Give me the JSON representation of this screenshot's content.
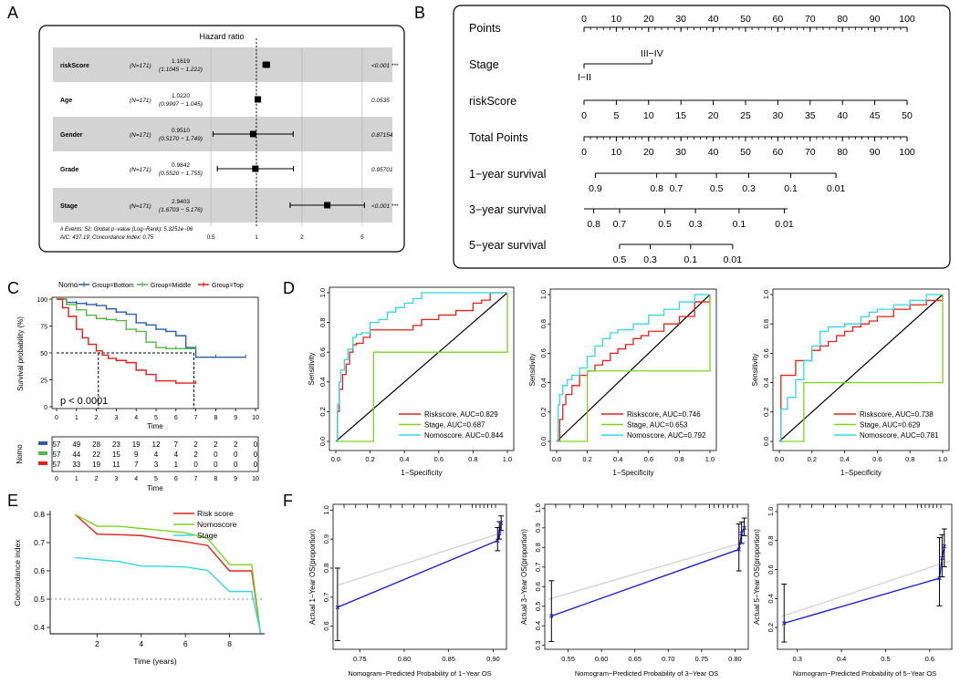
{
  "panel_letters": [
    "A",
    "B",
    "C",
    "D",
    "E",
    "F"
  ],
  "chart_data": [
    {
      "panel": "A",
      "type": "forest",
      "title": "Hazard ratio",
      "rows": [
        {
          "label": "riskScore",
          "n": "(N=171)",
          "hr": 1.1619,
          "hr_text": "1.1619",
          "ci_text": "(1.1045 − 1.222)",
          "lo": 1.1045,
          "hi": 1.222,
          "p": "<0.001 ***"
        },
        {
          "label": "Age",
          "n": "(N=171)",
          "hr": 1.022,
          "hr_text": "1.0220",
          "ci_text": "(0.9997 − 1.045)",
          "lo": 0.9997,
          "hi": 1.045,
          "p": "0.0535"
        },
        {
          "label": "Gender",
          "n": "(N=171)",
          "hr": 0.951,
          "hr_text": "0.9510",
          "ci_text": "(0.5170 − 1.749)",
          "lo": 0.517,
          "hi": 1.749,
          "p": "0.87154"
        },
        {
          "label": "Grade",
          "n": "(N=171)",
          "hr": 0.9842,
          "hr_text": "0.9842",
          "ci_text": "(0.5520 − 1.755)",
          "lo": 0.552,
          "hi": 1.755,
          "p": "0.95701"
        },
        {
          "label": "Stage",
          "n": "(N=171)",
          "hr": 2.9403,
          "hr_text": "2.9403",
          "ci_text": "(1.6703 − 5.176)",
          "lo": 1.6703,
          "hi": 5.176,
          "p": "<0.001 ***"
        }
      ],
      "xticks": [
        0.5,
        1,
        2,
        5
      ],
      "footnote": [
        "# Events: 52; Global p−value (Log−Rank): 5.3251e−06",
        "AIC: 437.19; Concordance Index: 0.75"
      ]
    },
    {
      "panel": "B",
      "type": "nomogram",
      "rows": [
        {
          "label": "Points",
          "min": 0,
          "max": 100,
          "ticks": [
            "0",
            "10",
            "20",
            "30",
            "40",
            "50",
            "60",
            "70",
            "80",
            "90",
            "100"
          ]
        },
        {
          "label": "Stage",
          "categories": [
            "I−II",
            "III−IV"
          ]
        },
        {
          "label": "riskScore",
          "min": 0,
          "max": 50,
          "ticks": [
            "0",
            "5",
            "10",
            "15",
            "20",
            "25",
            "30",
            "35",
            "40",
            "45",
            "50"
          ]
        },
        {
          "label": "Total Points",
          "min": 0,
          "max": 100,
          "ticks": [
            "0",
            "10",
            "20",
            "30",
            "40",
            "50",
            "60",
            "70",
            "80",
            "90",
            "100"
          ]
        },
        {
          "label": "1−year survival",
          "ticks": [
            "0.9",
            "0.8",
            "0.7",
            "0.5",
            "0.3",
            "0.1",
            "0.01"
          ]
        },
        {
          "label": "3−year survival",
          "ticks": [
            "0.8",
            "0.7",
            "0.5",
            "0.3",
            "0.1",
            "0.01"
          ]
        },
        {
          "label": "5−year survival",
          "ticks": [
            "0.5",
            "0.3",
            "0.1",
            "0.01"
          ]
        }
      ]
    },
    {
      "panel": "C",
      "type": "line",
      "subtype": "kaplan-meier",
      "legend_title": "Nomo",
      "legend": [
        "Group=Bottom",
        "Group=Middle",
        "Group=Top"
      ],
      "xlabel": "Time",
      "ylabel": "Survival probability (%)",
      "xticks": [
        0,
        1,
        2,
        3,
        4,
        5,
        6,
        7,
        8,
        9,
        10
      ],
      "yticks": [
        0,
        25,
        50,
        75,
        100
      ],
      "pvalue": "p < 0.0001",
      "median_times": [
        2.1,
        6.9
      ],
      "series": [
        {
          "name": "Group=Bottom",
          "color": "#2b5faa",
          "x": [
            0,
            0.5,
            1,
            1.5,
            2,
            2.5,
            3,
            3.5,
            4,
            4.5,
            5,
            5.5,
            6,
            6.5,
            7,
            8,
            9.5
          ],
          "y": [
            100,
            97,
            96,
            95,
            94,
            91,
            88,
            86,
            78,
            76,
            72,
            70,
            66,
            55,
            46,
            46,
            46
          ]
        },
        {
          "name": "Group=Middle",
          "color": "#52b848",
          "x": [
            0,
            0.5,
            1,
            1.5,
            2,
            2.5,
            3,
            3.5,
            4,
            4.5,
            5,
            5.5,
            6,
            7
          ],
          "y": [
            100,
            95,
            90,
            85,
            82,
            81,
            80,
            72,
            70,
            60,
            55,
            54,
            54,
            54
          ]
        },
        {
          "name": "Group=Top",
          "color": "#e2231a",
          "x": [
            0,
            0.3,
            0.6,
            1,
            1.3,
            1.6,
            2,
            2.3,
            2.6,
            3,
            3.5,
            4,
            4.5,
            5,
            6,
            7
          ],
          "y": [
            100,
            92,
            84,
            72,
            64,
            58,
            52,
            48,
            45,
            43,
            41,
            34,
            30,
            24,
            22,
            22
          ]
        }
      ],
      "risk_table": {
        "title": "Nomo",
        "xlabel": "Time",
        "rows": [
          {
            "color": "#2b5faa",
            "values": [
              "57",
              "49",
              "28",
              "23",
              "19",
              "12",
              "7",
              "2",
              "2",
              "2",
              "0"
            ]
          },
          {
            "color": "#52b848",
            "values": [
              "57",
              "44",
              "22",
              "15",
              "9",
              "4",
              "4",
              "2",
              "0",
              "0",
              "0"
            ]
          },
          {
            "color": "#e2231a",
            "values": [
              "57",
              "33",
              "19",
              "11",
              "7",
              "3",
              "1",
              "0",
              "0",
              "0",
              "0"
            ]
          }
        ]
      }
    },
    {
      "panel": "D",
      "type": "line",
      "subtype": "roc",
      "plots": [
        {
          "xlabel": "1−Specificity",
          "ylabel": "Sensitivity",
          "legend": [
            "Riskscore, AUC=0.829",
            "Stage, AUC=0.687",
            "Nomoscore, AUC=0.844"
          ],
          "series": [
            {
              "name": "Riskscore",
              "color": "#e2231a",
              "x": [
                0,
                0.01,
                0.02,
                0.04,
                0.06,
                0.08,
                0.1,
                0.12,
                0.16,
                0.2,
                0.3,
                0.4,
                0.45,
                0.5,
                0.6,
                0.7,
                0.8,
                0.85,
                0.9,
                1
              ],
              "y": [
                0,
                0.2,
                0.35,
                0.45,
                0.52,
                0.6,
                0.65,
                0.66,
                0.7,
                0.75,
                0.75,
                0.75,
                0.78,
                0.82,
                0.85,
                0.88,
                0.93,
                0.95,
                1,
                1
              ]
            },
            {
              "name": "Stage",
              "color": "#7ed321",
              "x": [
                0,
                0.22,
                1
              ],
              "y": [
                0,
                0.6,
                1
              ]
            },
            {
              "name": "Nomoscore",
              "color": "#33d6e6",
              "x": [
                0,
                0.01,
                0.02,
                0.03,
                0.05,
                0.07,
                0.1,
                0.12,
                0.15,
                0.2,
                0.25,
                0.3,
                0.35,
                0.4,
                0.45,
                0.5,
                0.7,
                0.9,
                1
              ],
              "y": [
                0,
                0.25,
                0.4,
                0.48,
                0.55,
                0.62,
                0.7,
                0.72,
                0.73,
                0.8,
                0.82,
                0.87,
                0.9,
                0.93,
                0.96,
                1,
                1,
                1,
                1
              ]
            }
          ]
        },
        {
          "xlabel": "1−Specificity",
          "ylabel": "Sensitivity",
          "legend": [
            "Riskscore, AUC=0.746",
            "Stage, AUC=0.653",
            "Nomoscore, AUC=0.792"
          ],
          "series": [
            {
              "name": "Riskscore",
              "color": "#e2231a",
              "x": [
                0,
                0.02,
                0.04,
                0.06,
                0.1,
                0.15,
                0.2,
                0.25,
                0.3,
                0.35,
                0.4,
                0.45,
                0.5,
                0.55,
                0.6,
                0.7,
                0.8,
                0.9,
                1
              ],
              "y": [
                0,
                0.15,
                0.25,
                0.32,
                0.38,
                0.45,
                0.48,
                0.52,
                0.55,
                0.6,
                0.63,
                0.66,
                0.7,
                0.72,
                0.75,
                0.8,
                0.85,
                0.95,
                1
              ]
            },
            {
              "name": "Stage",
              "color": "#7ed321",
              "x": [
                0,
                0.2,
                1
              ],
              "y": [
                0,
                0.48,
                1
              ]
            },
            {
              "name": "Nomoscore",
              "color": "#33d6e6",
              "x": [
                0,
                0.01,
                0.02,
                0.04,
                0.07,
                0.1,
                0.15,
                0.2,
                0.25,
                0.3,
                0.35,
                0.4,
                0.5,
                0.6,
                0.7,
                0.8,
                0.9,
                1
              ],
              "y": [
                0,
                0.25,
                0.32,
                0.38,
                0.42,
                0.45,
                0.5,
                0.58,
                0.65,
                0.7,
                0.74,
                0.76,
                0.8,
                0.86,
                0.9,
                0.95,
                1,
                1
              ]
            }
          ]
        },
        {
          "xlabel": "1−Specificity",
          "ylabel": "Sensitivity",
          "legend": [
            "Riskscore, AUC=0.738",
            "Stage, AUC=0.629",
            "Nomoscore, AUC=0.781"
          ],
          "series": [
            {
              "name": "Riskscore",
              "color": "#e2231a",
              "x": [
                0,
                0.01,
                0.05,
                0.1,
                0.15,
                0.2,
                0.25,
                0.3,
                0.35,
                0.4,
                0.45,
                0.5,
                0.55,
                0.6,
                0.7,
                0.8,
                0.9,
                1
              ],
              "y": [
                0,
                0.45,
                0.45,
                0.55,
                0.55,
                0.62,
                0.65,
                0.68,
                0.72,
                0.75,
                0.78,
                0.8,
                0.82,
                0.85,
                0.9,
                0.93,
                0.96,
                1
              ]
            },
            {
              "name": "Stage",
              "color": "#7ed321",
              "x": [
                0,
                0.15,
                1
              ],
              "y": [
                0,
                0.4,
                1
              ]
            },
            {
              "name": "Nomoscore",
              "color": "#33d6e6",
              "x": [
                0,
                0.01,
                0.05,
                0.1,
                0.15,
                0.2,
                0.25,
                0.3,
                0.4,
                0.5,
                0.55,
                0.6,
                0.7,
                0.8,
                0.9,
                1
              ],
              "y": [
                0,
                0.22,
                0.3,
                0.42,
                0.55,
                0.65,
                0.75,
                0.78,
                0.8,
                0.85,
                0.88,
                0.9,
                0.93,
                0.96,
                1,
                1
              ]
            }
          ]
        }
      ]
    },
    {
      "panel": "E",
      "type": "line",
      "xlabel": "Time (years)",
      "ylabel": "Concordance index",
      "xticks": [
        2,
        4,
        6,
        8
      ],
      "yticks": [
        0.4,
        0.5,
        0.6,
        0.7,
        0.8
      ],
      "xlim": [
        0,
        10
      ],
      "ylim": [
        0.38,
        0.82
      ],
      "legend": [
        "Risk score",
        "Nomoscore",
        "Stage"
      ],
      "reference": 0.5,
      "series": [
        {
          "name": "Risk score",
          "color": "#e2231a",
          "x": [
            1,
            2,
            3,
            4,
            5,
            6,
            7,
            8,
            9,
            9.4
          ],
          "y": [
            0.8,
            0.73,
            0.728,
            0.725,
            0.713,
            0.703,
            0.69,
            0.6,
            0.6,
            0.38
          ]
        },
        {
          "name": "Nomoscore",
          "color": "#7ed321",
          "x": [
            1,
            2,
            3,
            4,
            5,
            6,
            7,
            8,
            9,
            9.4
          ],
          "y": [
            0.8,
            0.758,
            0.758,
            0.75,
            0.743,
            0.735,
            0.715,
            0.622,
            0.622,
            0.38
          ]
        },
        {
          "name": "Stage",
          "color": "#33d6e6",
          "x": [
            1,
            2,
            3,
            4,
            5,
            6,
            7,
            8,
            9,
            9.4
          ],
          "y": [
            0.647,
            0.64,
            0.633,
            0.617,
            0.616,
            0.614,
            0.602,
            0.527,
            0.527,
            0.38
          ]
        }
      ]
    },
    {
      "panel": "F",
      "type": "line",
      "subtype": "calibration",
      "plots": [
        {
          "xlabel": "Nomogram−Predicted Probability of 1−Year OS",
          "ylabel": "Actual 1−Year OS(proportion)",
          "xticks": [
            0.75,
            0.8,
            0.85,
            0.9
          ],
          "yticks": [
            0.6,
            0.7,
            0.8,
            0.9,
            1.0
          ],
          "xlim": [
            0.72,
            0.915
          ],
          "ylim": [
            0.52,
            1.02
          ],
          "points": [
            {
              "x": 0.725,
              "y": 0.665,
              "lo": 0.55,
              "hi": 0.8
            },
            {
              "x": 0.905,
              "y": 0.895,
              "lo": 0.86,
              "hi": 0.94
            },
            {
              "x": 0.907,
              "y": 0.92,
              "lo": 0.9,
              "hi": 0.96
            },
            {
              "x": 0.909,
              "y": 0.955,
              "lo": 0.93,
              "hi": 0.98
            }
          ]
        },
        {
          "xlabel": "Nomogram−Predicted Probability of 3−Year OS",
          "ylabel": "Actual 3−Year OS(proportion)",
          "xticks": [
            0.55,
            0.6,
            0.65,
            0.7,
            0.75,
            0.8
          ],
          "yticks": [
            0.3,
            0.4,
            0.5,
            0.6,
            0.7,
            0.8,
            0.9,
            1.0
          ],
          "xlim": [
            0.515,
            0.82
          ],
          "ylim": [
            0.28,
            1.02
          ],
          "points": [
            {
              "x": 0.525,
              "y": 0.45,
              "lo": 0.32,
              "hi": 0.63
            },
            {
              "x": 0.806,
              "y": 0.79,
              "lo": 0.68,
              "hi": 0.92
            },
            {
              "x": 0.81,
              "y": 0.87,
              "lo": 0.82,
              "hi": 0.93
            },
            {
              "x": 0.814,
              "y": 0.9,
              "lo": 0.86,
              "hi": 0.95
            }
          ]
        },
        {
          "xlabel": "Nomogram−Predicted Probability of 5−Year OS",
          "ylabel": "Actual 5−Year OS(proportion)",
          "xticks": [
            0.3,
            0.4,
            0.5,
            0.6
          ],
          "yticks": [
            0.2,
            0.4,
            0.6,
            0.8,
            1.0
          ],
          "xlim": [
            0.255,
            0.65
          ],
          "ylim": [
            0.05,
            1.05
          ],
          "points": [
            {
              "x": 0.27,
              "y": 0.23,
              "lo": 0.1,
              "hi": 0.5
            },
            {
              "x": 0.622,
              "y": 0.54,
              "lo": 0.35,
              "hi": 0.82
            },
            {
              "x": 0.628,
              "y": 0.68,
              "lo": 0.55,
              "hi": 0.84
            },
            {
              "x": 0.633,
              "y": 0.76,
              "lo": 0.62,
              "hi": 0.88
            }
          ]
        }
      ]
    }
  ]
}
